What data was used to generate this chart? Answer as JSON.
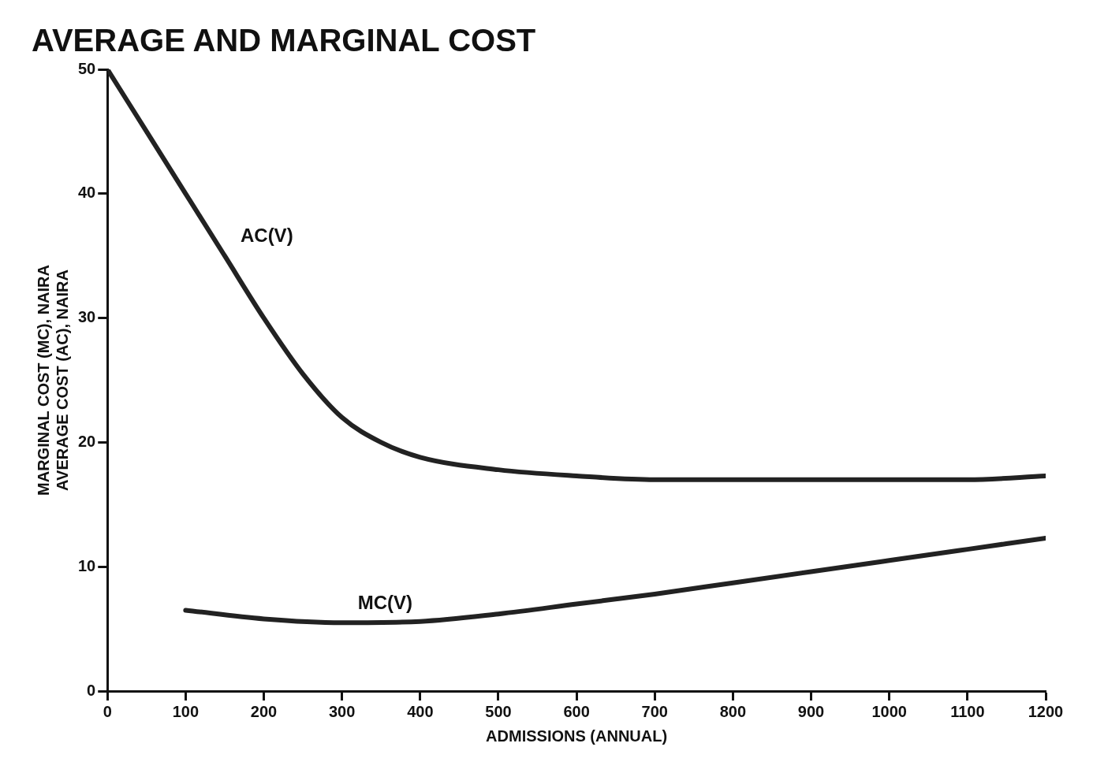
{
  "chart_data": {
    "type": "line",
    "title": "AVERAGE AND MARGINAL COST",
    "xlabel": "ADMISSIONS (ANNUAL)",
    "ylabel": "MARGINAL COST (MC), NAIRA\nAVERAGE COST (AC), NAIRA",
    "xlim": [
      0,
      1200
    ],
    "xticks": [
      0,
      100,
      200,
      300,
      400,
      500,
      600,
      700,
      800,
      900,
      1000,
      1100,
      1200
    ],
    "ylim": [
      0,
      50
    ],
    "yticks": [
      0,
      10,
      20,
      30,
      40,
      50
    ],
    "grid": false,
    "legend": false,
    "marker": "none",
    "line_style": "solid",
    "series": [
      {
        "name": "AC(V)",
        "color": "#222222",
        "x": [
          0,
          50,
          100,
          150,
          200,
          250,
          300,
          350,
          400,
          500,
          600,
          700,
          800,
          900,
          1000,
          1100,
          1200
        ],
        "values": [
          50,
          45,
          40,
          35,
          30,
          25.5,
          22,
          20,
          18.8,
          17.8,
          17.3,
          17,
          17,
          17,
          17,
          17,
          17.3
        ]
      },
      {
        "name": "MC(V)",
        "color": "#222222",
        "x": [
          100,
          200,
          300,
          400,
          500,
          600,
          700,
          800,
          900,
          1000,
          1100,
          1200
        ],
        "values": [
          6.5,
          5.8,
          5.5,
          5.6,
          6.2,
          7,
          7.8,
          8.7,
          9.6,
          10.5,
          11.4,
          12.3
        ]
      }
    ]
  }
}
